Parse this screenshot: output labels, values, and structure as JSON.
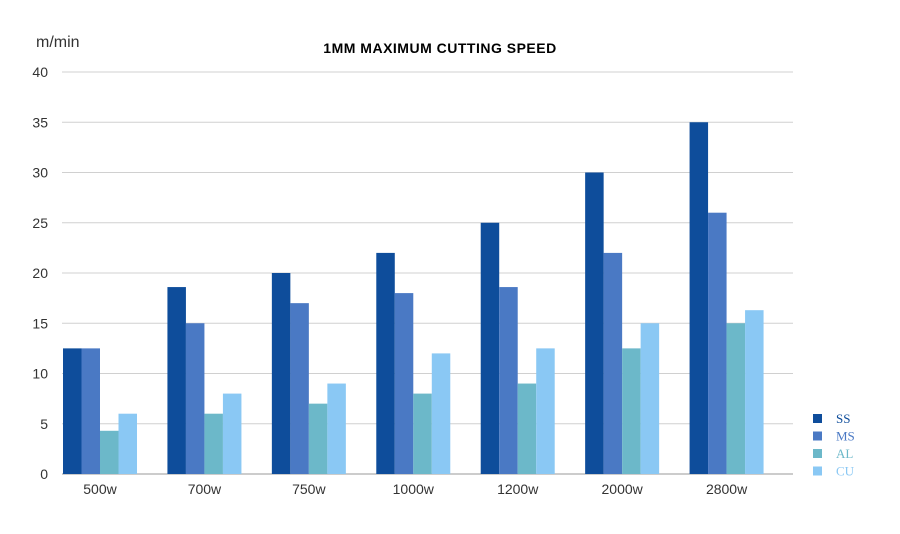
{
  "chart_data": {
    "type": "bar",
    "title": "1MM MAXIMUM CUTTING SPEED",
    "ylabel": "m/min",
    "xlabel": "",
    "ylim": [
      0,
      40
    ],
    "yticks": [
      0,
      5,
      10,
      15,
      20,
      25,
      30,
      35,
      40
    ],
    "grid": true,
    "legend_position": "right",
    "categories": [
      "500w",
      "700w",
      "750w",
      "1000w",
      "1200w",
      "2000w",
      "2800w"
    ],
    "series": [
      {
        "name": "SS",
        "color": "#0e4d9b",
        "values": [
          12.5,
          18.6,
          20,
          22,
          25,
          30,
          35
        ]
      },
      {
        "name": "MS",
        "color": "#4a79c4",
        "values": [
          12.5,
          15,
          17,
          18,
          18.6,
          22,
          26
        ]
      },
      {
        "name": "AL",
        "color": "#6cb8c9",
        "values": [
          4.3,
          6,
          7,
          8,
          9,
          12.5,
          15
        ]
      },
      {
        "name": "CU",
        "color": "#8ac8f4",
        "values": [
          6,
          8,
          9,
          12,
          12.5,
          15,
          16.3
        ]
      }
    ]
  }
}
